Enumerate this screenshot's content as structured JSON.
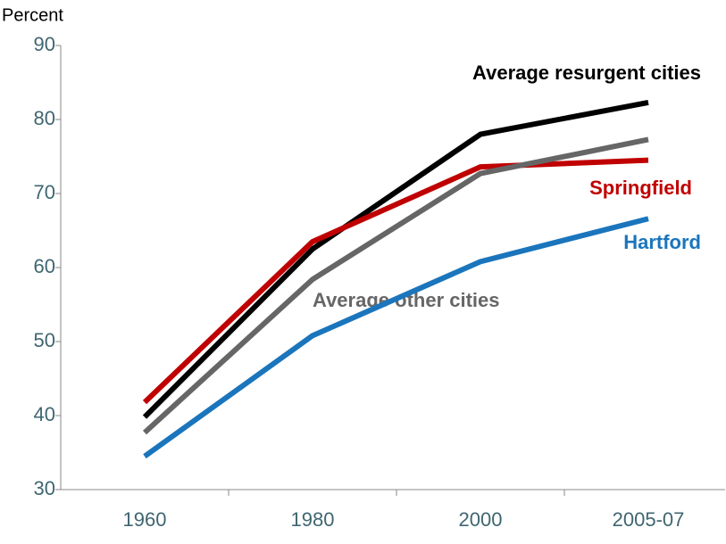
{
  "chart_data": {
    "type": "line",
    "y_label": "Percent",
    "categories": [
      "1960",
      "1980",
      "2000",
      "2005-07"
    ],
    "series": [
      {
        "name": "Average resurgent cities",
        "color": "#000000",
        "values": [
          39.8,
          62.5,
          78.0,
          82.3
        ]
      },
      {
        "name": "Springfield",
        "color": "#c00000",
        "values": [
          41.8,
          63.5,
          73.6,
          74.5
        ]
      },
      {
        "name": "Average other cities",
        "color": "#666666",
        "values": [
          37.7,
          58.4,
          72.7,
          77.3
        ]
      },
      {
        "name": "Hartford",
        "color": "#1a75bc",
        "values": [
          34.5,
          50.8,
          60.8,
          66.6
        ]
      }
    ],
    "ylim": [
      30,
      90
    ],
    "yticks": [
      30,
      40,
      50,
      60,
      70,
      80,
      90
    ],
    "grid": false
  }
}
